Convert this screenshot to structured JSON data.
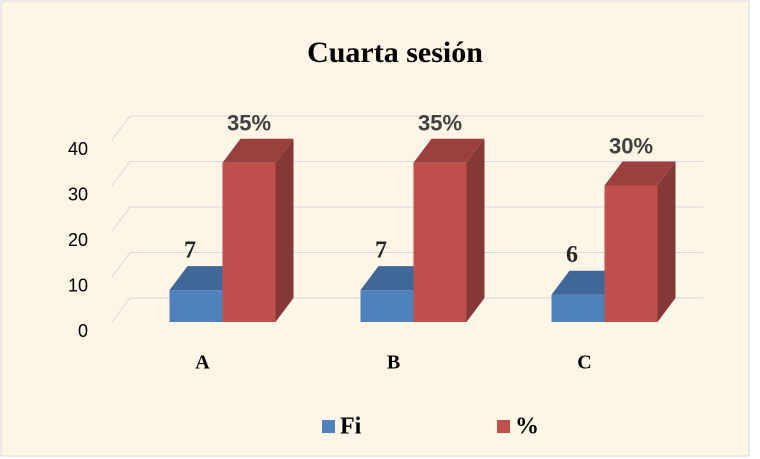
{
  "chart_data": {
    "type": "bar3d",
    "title": "Cuarta  sesión",
    "categories": [
      "A",
      "B",
      "C"
    ],
    "series": [
      {
        "name": "Fi",
        "color": "#4f81bd",
        "values": [
          7,
          7,
          6
        ]
      },
      {
        "name": "%",
        "color": "#c0504d",
        "values": [
          35,
          35,
          30
        ],
        "value_labels": [
          "35%",
          "35%",
          "30%"
        ]
      }
    ],
    "ylim": [
      0,
      40
    ],
    "yticks": [
      0,
      10,
      20,
      30,
      40
    ],
    "grid": true,
    "legend": "bottom"
  }
}
